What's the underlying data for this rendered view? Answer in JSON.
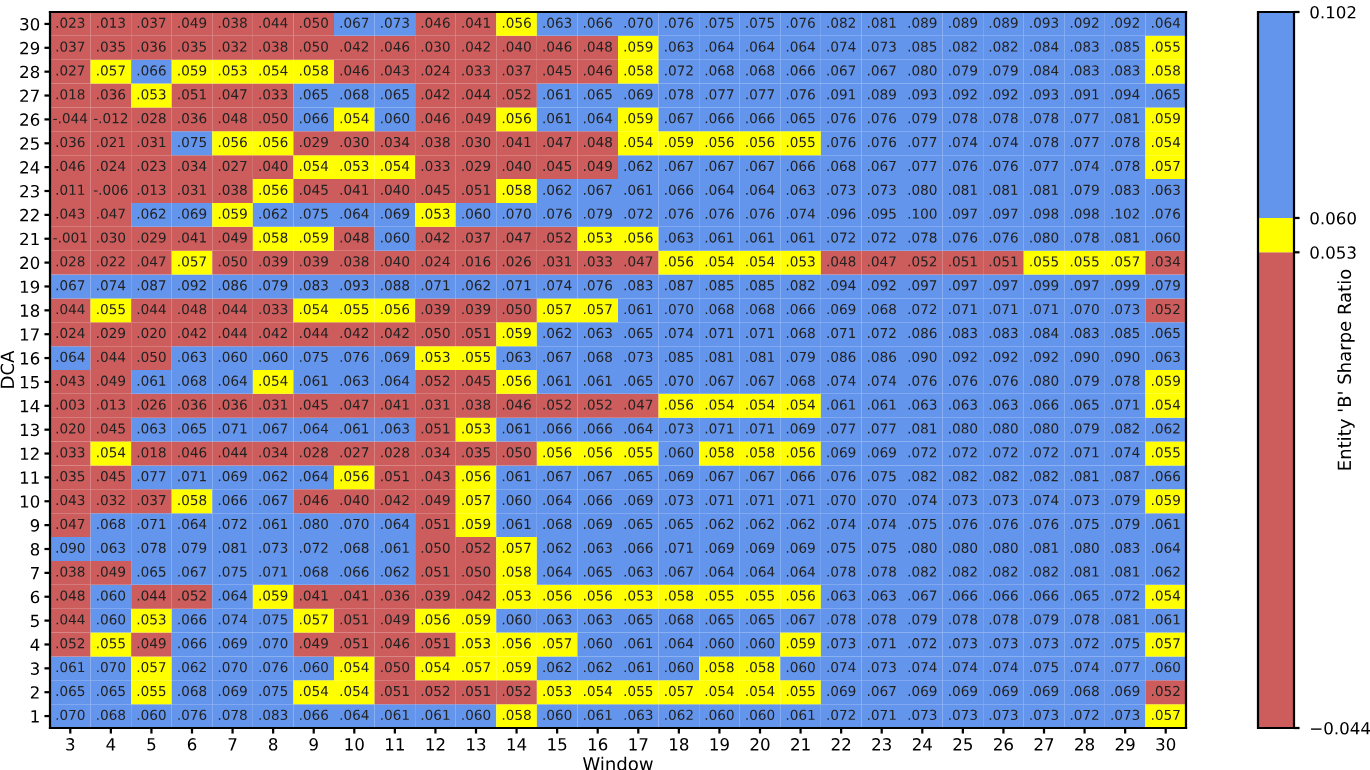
{
  "chart_data": {
    "type": "heatmap",
    "xlabel": "Window",
    "ylabel": "DCA",
    "clabel": "Entity 'B' Sharpe Ratio",
    "categories": [
      "3",
      "4",
      "5",
      "6",
      "7",
      "8",
      "9",
      "10",
      "11",
      "12",
      "13",
      "14",
      "15",
      "16",
      "17",
      "18",
      "19",
      "20",
      "21",
      "22",
      "23",
      "24",
      "25",
      "26",
      "27",
      "28",
      "29",
      "30"
    ],
    "y_categories": [
      "30",
      "29",
      "28",
      "27",
      "26",
      "25",
      "24",
      "23",
      "22",
      "21",
      "20",
      "19",
      "18",
      "17",
      "16",
      "15",
      "14",
      "13",
      "12",
      "11",
      "10",
      "9",
      "8",
      "7",
      "6",
      "5",
      "4",
      "3",
      "2",
      "1"
    ],
    "clim": [
      -0.044,
      0.102
    ],
    "cticks": [
      {
        "value": -0.044,
        "label": "−0.044"
      },
      0.053,
      {
        "value": 0.06,
        "label": "0.060"
      },
      0.102
    ],
    "colors": [
      "#cd5c5c",
      "#ffff00",
      "#6495ed"
    ],
    "data_labels": true,
    "cell_labels": [
      [
        ".023",
        ".013",
        ".037",
        ".049",
        ".038",
        ".044",
        ".050",
        ".067",
        ".073",
        ".046",
        ".041",
        ".056",
        ".063",
        ".066",
        ".070",
        ".076",
        ".075",
        ".075",
        ".076",
        ".082",
        ".081",
        ".089",
        ".089",
        ".089",
        ".093",
        ".092",
        ".092",
        ".064"
      ],
      [
        ".037",
        ".035",
        ".036",
        ".035",
        ".032",
        ".038",
        ".050",
        ".042",
        ".046",
        ".030",
        ".042",
        ".040",
        ".046",
        ".048",
        ".059",
        ".063",
        ".064",
        ".064",
        ".064",
        ".074",
        ".073",
        ".085",
        ".082",
        ".082",
        ".084",
        ".083",
        ".085",
        ".055"
      ],
      [
        ".027",
        ".057",
        ".066",
        ".059",
        ".053",
        ".054",
        ".058",
        ".046",
        ".043",
        ".024",
        ".033",
        ".037",
        ".045",
        ".046",
        ".058",
        ".072",
        ".068",
        ".068",
        ".066",
        ".067",
        ".067",
        ".080",
        ".079",
        ".079",
        ".084",
        ".083",
        ".083",
        ".058"
      ],
      [
        ".018",
        ".036",
        ".053",
        ".051",
        ".047",
        ".033",
        ".065",
        ".068",
        ".065",
        ".042",
        ".044",
        ".052",
        ".061",
        ".065",
        ".069",
        ".078",
        ".077",
        ".077",
        ".076",
        ".091",
        ".089",
        ".093",
        ".092",
        ".092",
        ".093",
        ".091",
        ".094",
        ".065"
      ],
      [
        "-.044",
        "-.012",
        ".028",
        ".036",
        ".048",
        ".050",
        ".066",
        ".054",
        ".060",
        ".046",
        ".049",
        ".056",
        ".061",
        ".064",
        ".059",
        ".067",
        ".066",
        ".066",
        ".065",
        ".076",
        ".076",
        ".079",
        ".078",
        ".078",
        ".078",
        ".077",
        ".081",
        ".059"
      ],
      [
        ".036",
        ".021",
        ".031",
        ".075",
        ".056",
        ".056",
        ".029",
        ".030",
        ".034",
        ".038",
        ".030",
        ".041",
        ".047",
        ".048",
        ".054",
        ".059",
        ".056",
        ".056",
        ".055",
        ".076",
        ".076",
        ".077",
        ".074",
        ".074",
        ".078",
        ".077",
        ".078",
        ".054"
      ],
      [
        ".046",
        ".024",
        ".023",
        ".034",
        ".027",
        ".040",
        ".054",
        ".053",
        ".054",
        ".033",
        ".029",
        ".040",
        ".045",
        ".049",
        ".062",
        ".067",
        ".067",
        ".067",
        ".066",
        ".068",
        ".067",
        ".077",
        ".076",
        ".076",
        ".077",
        ".074",
        ".078",
        ".057"
      ],
      [
        ".011",
        "-.006",
        ".013",
        ".031",
        ".038",
        ".056",
        ".045",
        ".041",
        ".040",
        ".045",
        ".051",
        ".058",
        ".062",
        ".067",
        ".061",
        ".066",
        ".064",
        ".064",
        ".063",
        ".073",
        ".073",
        ".080",
        ".081",
        ".081",
        ".081",
        ".079",
        ".083",
        ".063"
      ],
      [
        ".043",
        ".047",
        ".062",
        ".069",
        ".059",
        ".062",
        ".075",
        ".064",
        ".069",
        ".053",
        ".060",
        ".070",
        ".076",
        ".079",
        ".072",
        ".076",
        ".076",
        ".076",
        ".074",
        ".096",
        ".095",
        ".100",
        ".097",
        ".097",
        ".098",
        ".098",
        ".102",
        ".076"
      ],
      [
        "-.001",
        ".030",
        ".029",
        ".041",
        ".049",
        ".058",
        ".059",
        ".048",
        ".060",
        ".042",
        ".037",
        ".047",
        ".052",
        ".053",
        ".056",
        ".063",
        ".061",
        ".061",
        ".061",
        ".072",
        ".072",
        ".078",
        ".076",
        ".076",
        ".080",
        ".078",
        ".081",
        ".060"
      ],
      [
        ".028",
        ".022",
        ".047",
        ".057",
        ".050",
        ".039",
        ".039",
        ".038",
        ".040",
        ".024",
        ".016",
        ".026",
        ".031",
        ".033",
        ".047",
        ".056",
        ".054",
        ".054",
        ".053",
        ".048",
        ".047",
        ".052",
        ".051",
        ".051",
        ".055",
        ".055",
        ".057",
        ".034"
      ],
      [
        ".067",
        ".074",
        ".087",
        ".092",
        ".086",
        ".079",
        ".083",
        ".093",
        ".088",
        ".071",
        ".062",
        ".071",
        ".074",
        ".076",
        ".083",
        ".087",
        ".085",
        ".085",
        ".082",
        ".094",
        ".092",
        ".097",
        ".097",
        ".097",
        ".099",
        ".097",
        ".099",
        ".079"
      ],
      [
        ".044",
        ".055",
        ".044",
        ".048",
        ".044",
        ".033",
        ".054",
        ".055",
        ".056",
        ".039",
        ".039",
        ".050",
        ".057",
        ".057",
        ".061",
        ".070",
        ".068",
        ".068",
        ".066",
        ".069",
        ".068",
        ".072",
        ".071",
        ".071",
        ".071",
        ".070",
        ".073",
        ".052"
      ],
      [
        ".024",
        ".029",
        ".020",
        ".042",
        ".044",
        ".042",
        ".044",
        ".042",
        ".042",
        ".050",
        ".051",
        ".059",
        ".062",
        ".063",
        ".065",
        ".074",
        ".071",
        ".071",
        ".068",
        ".071",
        ".072",
        ".086",
        ".083",
        ".083",
        ".084",
        ".083",
        ".085",
        ".065"
      ],
      [
        ".064",
        ".044",
        ".050",
        ".063",
        ".060",
        ".060",
        ".075",
        ".076",
        ".069",
        ".053",
        ".055",
        ".063",
        ".067",
        ".068",
        ".073",
        ".085",
        ".081",
        ".081",
        ".079",
        ".086",
        ".086",
        ".090",
        ".092",
        ".092",
        ".092",
        ".090",
        ".090",
        ".063"
      ],
      [
        ".043",
        ".049",
        ".061",
        ".068",
        ".064",
        ".054",
        ".061",
        ".063",
        ".064",
        ".052",
        ".045",
        ".056",
        ".061",
        ".061",
        ".065",
        ".070",
        ".067",
        ".067",
        ".068",
        ".074",
        ".074",
        ".076",
        ".076",
        ".076",
        ".080",
        ".079",
        ".078",
        ".059"
      ],
      [
        ".003",
        ".013",
        ".026",
        ".036",
        ".036",
        ".031",
        ".045",
        ".047",
        ".041",
        ".031",
        ".038",
        ".046",
        ".052",
        ".052",
        ".047",
        ".056",
        ".054",
        ".054",
        ".054",
        ".061",
        ".061",
        ".063",
        ".063",
        ".063",
        ".066",
        ".065",
        ".071",
        ".054"
      ],
      [
        ".020",
        ".045",
        ".063",
        ".065",
        ".071",
        ".067",
        ".064",
        ".061",
        ".063",
        ".051",
        ".053",
        ".061",
        ".066",
        ".066",
        ".064",
        ".073",
        ".071",
        ".071",
        ".069",
        ".077",
        ".077",
        ".081",
        ".080",
        ".080",
        ".080",
        ".079",
        ".082",
        ".062"
      ],
      [
        ".033",
        ".054",
        ".018",
        ".046",
        ".044",
        ".034",
        ".028",
        ".027",
        ".028",
        ".034",
        ".035",
        ".050",
        ".056",
        ".056",
        ".055",
        ".060",
        ".058",
        ".058",
        ".056",
        ".069",
        ".069",
        ".072",
        ".072",
        ".072",
        ".072",
        ".071",
        ".074",
        ".055"
      ],
      [
        ".035",
        ".045",
        ".077",
        ".071",
        ".069",
        ".062",
        ".064",
        ".056",
        ".051",
        ".043",
        ".056",
        ".061",
        ".067",
        ".067",
        ".065",
        ".069",
        ".067",
        ".067",
        ".066",
        ".076",
        ".075",
        ".082",
        ".082",
        ".082",
        ".082",
        ".081",
        ".087",
        ".066"
      ],
      [
        ".043",
        ".032",
        ".037",
        ".058",
        ".066",
        ".067",
        ".046",
        ".040",
        ".042",
        ".049",
        ".057",
        ".060",
        ".064",
        ".066",
        ".069",
        ".073",
        ".071",
        ".071",
        ".071",
        ".070",
        ".070",
        ".074",
        ".073",
        ".073",
        ".074",
        ".073",
        ".079",
        ".059"
      ],
      [
        ".047",
        ".068",
        ".071",
        ".064",
        ".072",
        ".061",
        ".080",
        ".070",
        ".064",
        ".051",
        ".059",
        ".061",
        ".068",
        ".069",
        ".065",
        ".065",
        ".062",
        ".062",
        ".062",
        ".074",
        ".074",
        ".075",
        ".076",
        ".076",
        ".076",
        ".075",
        ".079",
        ".061"
      ],
      [
        ".090",
        ".063",
        ".078",
        ".079",
        ".081",
        ".073",
        ".072",
        ".068",
        ".061",
        ".050",
        ".052",
        ".057",
        ".062",
        ".063",
        ".066",
        ".071",
        ".069",
        ".069",
        ".069",
        ".075",
        ".075",
        ".080",
        ".080",
        ".080",
        ".081",
        ".080",
        ".083",
        ".064"
      ],
      [
        ".038",
        ".049",
        ".065",
        ".067",
        ".075",
        ".071",
        ".068",
        ".066",
        ".062",
        ".051",
        ".050",
        ".058",
        ".064",
        ".065",
        ".063",
        ".067",
        ".064",
        ".064",
        ".064",
        ".078",
        ".078",
        ".082",
        ".082",
        ".082",
        ".082",
        ".081",
        ".081",
        ".062"
      ],
      [
        ".048",
        ".060",
        ".044",
        ".052",
        ".064",
        ".059",
        ".041",
        ".041",
        ".036",
        ".039",
        ".042",
        ".053",
        ".056",
        ".056",
        ".053",
        ".058",
        ".055",
        ".055",
        ".056",
        ".063",
        ".063",
        ".067",
        ".066",
        ".066",
        ".066",
        ".065",
        ".072",
        ".054"
      ],
      [
        ".044",
        ".060",
        ".053",
        ".066",
        ".074",
        ".075",
        ".057",
        ".051",
        ".049",
        ".056",
        ".059",
        ".060",
        ".063",
        ".063",
        ".065",
        ".068",
        ".065",
        ".065",
        ".067",
        ".078",
        ".078",
        ".079",
        ".078",
        ".078",
        ".079",
        ".078",
        ".081",
        ".061"
      ],
      [
        ".052",
        ".055",
        ".049",
        ".066",
        ".069",
        ".070",
        ".049",
        ".051",
        ".046",
        ".051",
        ".053",
        ".056",
        ".057",
        ".060",
        ".061",
        ".064",
        ".060",
        ".060",
        ".059",
        ".073",
        ".071",
        ".072",
        ".073",
        ".073",
        ".073",
        ".072",
        ".075",
        ".057"
      ],
      [
        ".061",
        ".070",
        ".057",
        ".062",
        ".070",
        ".076",
        ".060",
        ".054",
        ".050",
        ".054",
        ".057",
        ".059",
        ".062",
        ".062",
        ".061",
        ".060",
        ".058",
        ".058",
        ".060",
        ".074",
        ".073",
        ".074",
        ".074",
        ".074",
        ".075",
        ".074",
        ".077",
        ".060"
      ],
      [
        ".065",
        ".065",
        ".055",
        ".068",
        ".069",
        ".075",
        ".054",
        ".054",
        ".051",
        ".052",
        ".051",
        ".052",
        ".053",
        ".054",
        ".055",
        ".057",
        ".054",
        ".054",
        ".055",
        ".069",
        ".067",
        ".069",
        ".069",
        ".069",
        ".069",
        ".068",
        ".069",
        ".052"
      ],
      [
        ".070",
        ".068",
        ".060",
        ".076",
        ".078",
        ".083",
        ".066",
        ".064",
        ".061",
        ".061",
        ".060",
        ".058",
        ".060",
        ".061",
        ".063",
        ".062",
        ".060",
        ".060",
        ".061",
        ".072",
        ".071",
        ".073",
        ".073",
        ".073",
        ".073",
        ".072",
        ".073",
        ".057"
      ]
    ],
    "cells": [
      [
        0.023,
        0.013,
        0.037,
        0.049,
        0.038,
        0.044,
        0.05,
        0.067,
        0.073,
        0.046,
        0.041,
        0.056,
        0.063,
        0.066,
        0.07,
        0.076,
        0.075,
        0.075,
        0.076,
        0.082,
        0.081,
        0.089,
        0.089,
        0.089,
        0.093,
        0.092,
        0.092,
        0.064
      ],
      [
        0.037,
        0.035,
        0.036,
        0.035,
        0.032,
        0.038,
        0.05,
        0.042,
        0.046,
        0.03,
        0.042,
        0.04,
        0.046,
        0.048,
        0.059,
        0.063,
        0.064,
        0.064,
        0.064,
        0.074,
        0.073,
        0.085,
        0.082,
        0.082,
        0.084,
        0.083,
        0.085,
        0.055
      ],
      [
        0.027,
        0.057,
        0.066,
        0.059,
        0.053,
        0.054,
        0.058,
        0.046,
        0.043,
        0.024,
        0.033,
        0.037,
        0.045,
        0.046,
        0.058,
        0.072,
        0.068,
        0.068,
        0.066,
        0.067,
        0.067,
        0.08,
        0.079,
        0.079,
        0.084,
        0.083,
        0.083,
        0.058
      ],
      [
        0.018,
        0.036,
        0.053,
        0.051,
        0.047,
        0.033,
        0.065,
        0.068,
        0.065,
        0.042,
        0.044,
        0.052,
        0.061,
        0.065,
        0.069,
        0.078,
        0.077,
        0.077,
        0.076,
        0.091,
        0.089,
        0.093,
        0.092,
        0.092,
        0.093,
        0.091,
        0.094,
        0.065
      ],
      [
        -0.044,
        -0.012,
        0.028,
        0.036,
        0.048,
        0.05,
        0.066,
        0.054,
        0.06,
        0.046,
        0.049,
        0.056,
        0.061,
        0.064,
        0.059,
        0.067,
        0.066,
        0.066,
        0.065,
        0.076,
        0.076,
        0.079,
        0.078,
        0.078,
        0.078,
        0.077,
        0.081,
        0.059
      ],
      [
        0.036,
        0.021,
        0.031,
        0.075,
        0.056,
        0.056,
        0.029,
        0.03,
        0.034,
        0.038,
        0.03,
        0.041,
        0.047,
        0.048,
        0.054,
        0.059,
        0.056,
        0.056,
        0.055,
        0.076,
        0.076,
        0.077,
        0.074,
        0.074,
        0.078,
        0.077,
        0.078,
        0.054
      ],
      [
        0.046,
        0.024,
        0.023,
        0.034,
        0.027,
        0.04,
        0.054,
        0.053,
        0.054,
        0.033,
        0.029,
        0.04,
        0.045,
        0.049,
        0.062,
        0.067,
        0.067,
        0.067,
        0.066,
        0.068,
        0.067,
        0.077,
        0.076,
        0.076,
        0.077,
        0.074,
        0.078,
        0.057
      ],
      [
        0.011,
        -0.006,
        0.013,
        0.031,
        0.038,
        0.056,
        0.045,
        0.041,
        0.04,
        0.045,
        0.051,
        0.058,
        0.062,
        0.067,
        0.061,
        0.066,
        0.064,
        0.064,
        0.063,
        0.073,
        0.073,
        0.08,
        0.081,
        0.081,
        0.081,
        0.079,
        0.083,
        0.063
      ],
      [
        0.043,
        0.047,
        0.062,
        0.069,
        0.059,
        0.062,
        0.075,
        0.064,
        0.069,
        0.053,
        0.06,
        0.07,
        0.076,
        0.079,
        0.072,
        0.076,
        0.076,
        0.076,
        0.074,
        0.096,
        0.095,
        0.1,
        0.097,
        0.097,
        0.098,
        0.098,
        0.102,
        0.076
      ],
      [
        -0.001,
        0.03,
        0.029,
        0.041,
        0.049,
        0.058,
        0.059,
        0.048,
        0.06,
        0.042,
        0.037,
        0.047,
        0.052,
        0.053,
        0.056,
        0.063,
        0.061,
        0.061,
        0.061,
        0.072,
        0.072,
        0.078,
        0.076,
        0.076,
        0.08,
        0.078,
        0.081,
        0.06
      ],
      [
        0.028,
        0.022,
        0.047,
        0.057,
        0.05,
        0.039,
        0.039,
        0.038,
        0.04,
        0.024,
        0.016,
        0.026,
        0.031,
        0.033,
        0.047,
        0.056,
        0.054,
        0.054,
        0.053,
        0.048,
        0.047,
        0.052,
        0.051,
        0.051,
        0.055,
        0.055,
        0.057,
        0.034
      ],
      [
        0.067,
        0.074,
        0.087,
        0.092,
        0.086,
        0.079,
        0.083,
        0.093,
        0.088,
        0.071,
        0.062,
        0.071,
        0.074,
        0.076,
        0.083,
        0.087,
        0.085,
        0.085,
        0.082,
        0.094,
        0.092,
        0.097,
        0.097,
        0.097,
        0.099,
        0.097,
        0.099,
        0.079
      ],
      [
        0.044,
        0.055,
        0.044,
        0.048,
        0.044,
        0.033,
        0.054,
        0.055,
        0.056,
        0.039,
        0.039,
        0.05,
        0.057,
        0.057,
        0.061,
        0.07,
        0.068,
        0.068,
        0.066,
        0.069,
        0.068,
        0.072,
        0.071,
        0.071,
        0.071,
        0.07,
        0.073,
        0.052
      ],
      [
        0.024,
        0.029,
        0.02,
        0.042,
        0.044,
        0.042,
        0.044,
        0.042,
        0.042,
        0.05,
        0.051,
        0.059,
        0.062,
        0.063,
        0.065,
        0.074,
        0.071,
        0.071,
        0.068,
        0.071,
        0.072,
        0.086,
        0.083,
        0.083,
        0.084,
        0.083,
        0.085,
        0.065
      ],
      [
        0.064,
        0.044,
        0.05,
        0.063,
        0.06,
        0.06,
        0.075,
        0.076,
        0.069,
        0.053,
        0.055,
        0.063,
        0.067,
        0.068,
        0.073,
        0.085,
        0.081,
        0.081,
        0.079,
        0.086,
        0.086,
        0.09,
        0.092,
        0.092,
        0.092,
        0.09,
        0.09,
        0.063
      ],
      [
        0.043,
        0.049,
        0.061,
        0.068,
        0.064,
        0.054,
        0.061,
        0.063,
        0.064,
        0.052,
        0.045,
        0.056,
        0.061,
        0.061,
        0.065,
        0.07,
        0.067,
        0.067,
        0.068,
        0.074,
        0.074,
        0.076,
        0.076,
        0.076,
        0.08,
        0.079,
        0.078,
        0.059
      ],
      [
        0.003,
        0.013,
        0.026,
        0.036,
        0.036,
        0.031,
        0.045,
        0.047,
        0.041,
        0.031,
        0.038,
        0.046,
        0.052,
        0.052,
        0.047,
        0.056,
        0.054,
        0.054,
        0.054,
        0.061,
        0.061,
        0.063,
        0.063,
        0.063,
        0.066,
        0.065,
        0.071,
        0.054
      ],
      [
        0.02,
        0.045,
        0.063,
        0.065,
        0.071,
        0.067,
        0.064,
        0.061,
        0.063,
        0.051,
        0.053,
        0.061,
        0.066,
        0.066,
        0.064,
        0.073,
        0.071,
        0.071,
        0.069,
        0.077,
        0.077,
        0.081,
        0.08,
        0.08,
        0.08,
        0.079,
        0.082,
        0.062
      ],
      [
        0.033,
        0.054,
        0.018,
        0.046,
        0.044,
        0.034,
        0.028,
        0.027,
        0.028,
        0.034,
        0.035,
        0.05,
        0.056,
        0.056,
        0.055,
        0.06,
        0.058,
        0.058,
        0.056,
        0.069,
        0.069,
        0.072,
        0.072,
        0.072,
        0.072,
        0.071,
        0.074,
        0.055
      ],
      [
        0.035,
        0.045,
        0.077,
        0.071,
        0.069,
        0.062,
        0.064,
        0.056,
        0.051,
        0.043,
        0.056,
        0.061,
        0.067,
        0.067,
        0.065,
        0.069,
        0.067,
        0.067,
        0.066,
        0.076,
        0.075,
        0.082,
        0.082,
        0.082,
        0.082,
        0.081,
        0.087,
        0.066
      ],
      [
        0.043,
        0.032,
        0.037,
        0.058,
        0.066,
        0.067,
        0.046,
        0.04,
        0.042,
        0.049,
        0.057,
        0.06,
        0.064,
        0.066,
        0.069,
        0.073,
        0.071,
        0.071,
        0.071,
        0.07,
        0.07,
        0.074,
        0.073,
        0.073,
        0.074,
        0.073,
        0.079,
        0.059
      ],
      [
        0.047,
        0.068,
        0.071,
        0.064,
        0.072,
        0.061,
        0.08,
        0.07,
        0.064,
        0.051,
        0.059,
        0.061,
        0.068,
        0.069,
        0.065,
        0.065,
        0.062,
        0.062,
        0.062,
        0.074,
        0.074,
        0.075,
        0.076,
        0.076,
        0.076,
        0.075,
        0.079,
        0.061
      ],
      [
        0.09,
        0.063,
        0.078,
        0.079,
        0.081,
        0.073,
        0.072,
        0.068,
        0.061,
        0.05,
        0.052,
        0.057,
        0.062,
        0.063,
        0.066,
        0.071,
        0.069,
        0.069,
        0.069,
        0.075,
        0.075,
        0.08,
        0.08,
        0.08,
        0.081,
        0.08,
        0.083,
        0.064
      ],
      [
        0.038,
        0.049,
        0.065,
        0.067,
        0.075,
        0.071,
        0.068,
        0.066,
        0.062,
        0.051,
        0.05,
        0.058,
        0.064,
        0.065,
        0.063,
        0.067,
        0.064,
        0.064,
        0.064,
        0.078,
        0.078,
        0.082,
        0.082,
        0.082,
        0.082,
        0.081,
        0.081,
        0.062
      ],
      [
        0.048,
        0.06,
        0.044,
        0.052,
        0.064,
        0.059,
        0.041,
        0.041,
        0.036,
        0.039,
        0.042,
        0.053,
        0.056,
        0.056,
        0.053,
        0.058,
        0.055,
        0.055,
        0.056,
        0.063,
        0.063,
        0.067,
        0.066,
        0.066,
        0.066,
        0.065,
        0.072,
        0.054
      ],
      [
        0.044,
        0.06,
        0.053,
        0.066,
        0.074,
        0.075,
        0.057,
        0.051,
        0.049,
        0.056,
        0.059,
        0.06,
        0.063,
        0.063,
        0.065,
        0.068,
        0.065,
        0.065,
        0.067,
        0.078,
        0.078,
        0.079,
        0.078,
        0.078,
        0.079,
        0.078,
        0.081,
        0.061
      ],
      [
        0.052,
        0.055,
        0.049,
        0.066,
        0.069,
        0.07,
        0.049,
        0.051,
        0.046,
        0.051,
        0.053,
        0.056,
        0.057,
        0.06,
        0.061,
        0.064,
        0.06,
        0.06,
        0.059,
        0.073,
        0.071,
        0.072,
        0.073,
        0.073,
        0.073,
        0.072,
        0.075,
        0.057
      ],
      [
        0.061,
        0.07,
        0.057,
        0.062,
        0.07,
        0.076,
        0.06,
        0.054,
        0.05,
        0.054,
        0.057,
        0.059,
        0.062,
        0.062,
        0.061,
        0.06,
        0.058,
        0.058,
        0.06,
        0.074,
        0.073,
        0.074,
        0.074,
        0.074,
        0.075,
        0.074,
        0.077,
        0.06
      ],
      [
        0.065,
        0.065,
        0.055,
        0.068,
        0.069,
        0.075,
        0.054,
        0.054,
        0.051,
        0.052,
        0.051,
        0.052,
        0.053,
        0.054,
        0.055,
        0.057,
        0.054,
        0.054,
        0.055,
        0.069,
        0.067,
        0.069,
        0.069,
        0.069,
        0.069,
        0.068,
        0.069,
        0.052
      ],
      [
        0.07,
        0.068,
        0.06,
        0.076,
        0.078,
        0.083,
        0.066,
        0.064,
        0.061,
        0.061,
        0.06,
        0.058,
        0.06,
        0.061,
        0.063,
        0.062,
        0.06,
        0.06,
        0.061,
        0.072,
        0.071,
        0.073,
        0.073,
        0.073,
        0.073,
        0.072,
        0.073,
        0.057
      ]
    ]
  }
}
